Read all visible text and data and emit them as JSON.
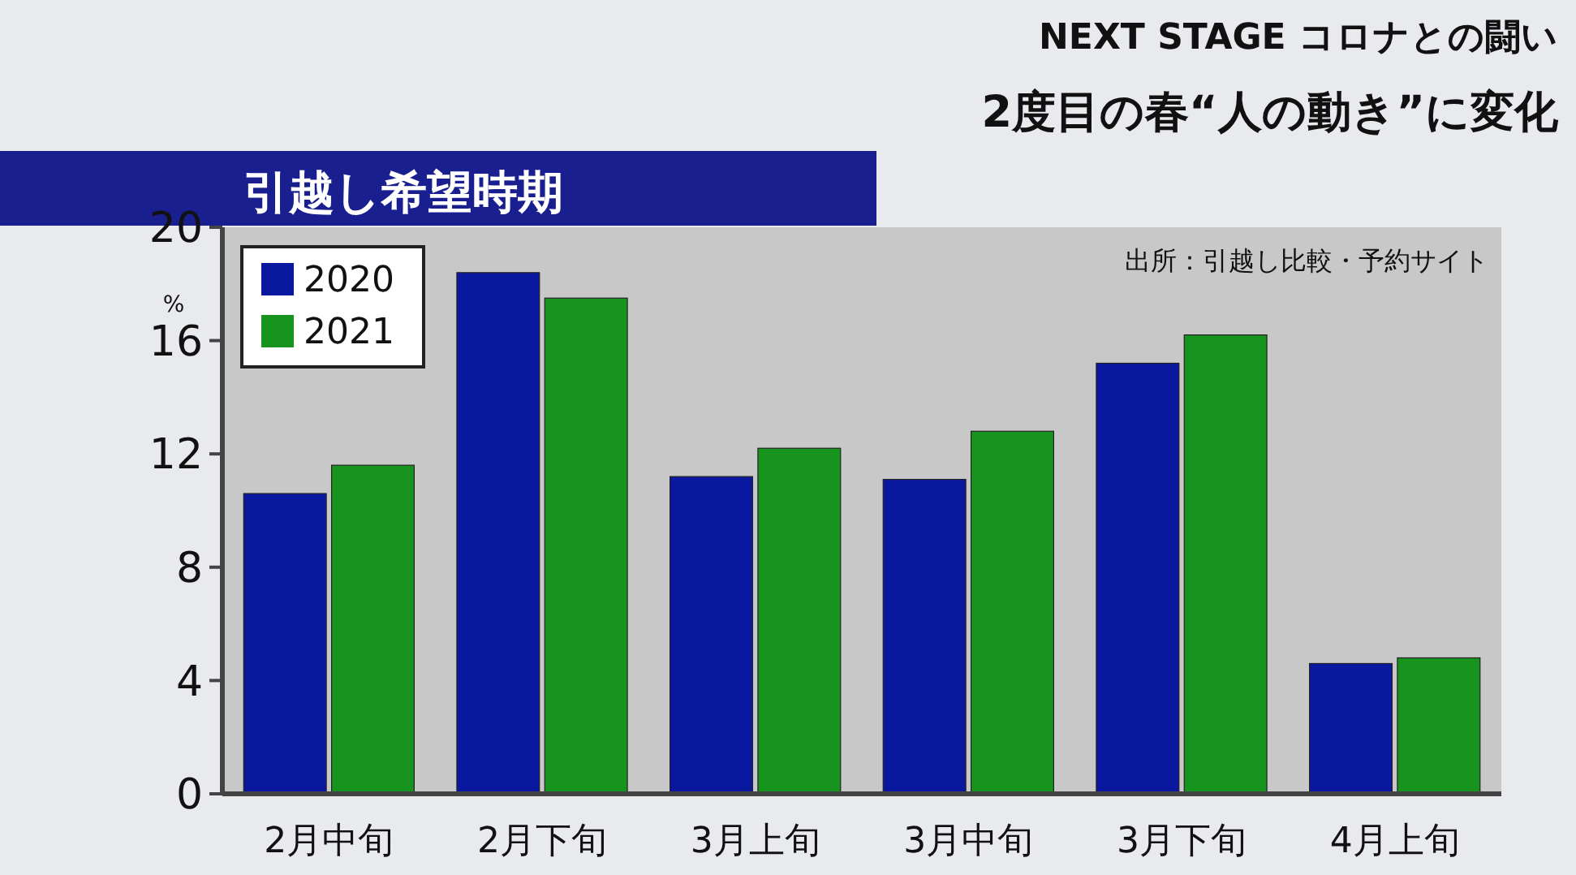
{
  "chart_data": {
    "type": "bar",
    "title": "引越し希望時期",
    "ylabel": "%",
    "annotations": [
      "NEXT STAGE コロナとの闘い",
      "2度目の春“人の動き”に変化",
      "出所：引越し比較・予約サイト"
    ],
    "categories": [
      "2月中旬",
      "2月下旬",
      "3月上旬",
      "3月中旬",
      "3月下旬",
      "4月上旬"
    ],
    "series": [
      {
        "name": "2020",
        "color": "#0a18a0",
        "values": [
          10.6,
          18.4,
          11.2,
          11.1,
          15.2,
          4.6
        ]
      },
      {
        "name": "2021",
        "color": "#16941e",
        "values": [
          11.6,
          17.5,
          12.2,
          12.8,
          16.2,
          4.8
        ]
      }
    ],
    "ylim": [
      0,
      20
    ],
    "yticks": [
      0,
      4,
      8,
      12,
      16,
      20
    ],
    "grid": false,
    "legend": "top left"
  }
}
